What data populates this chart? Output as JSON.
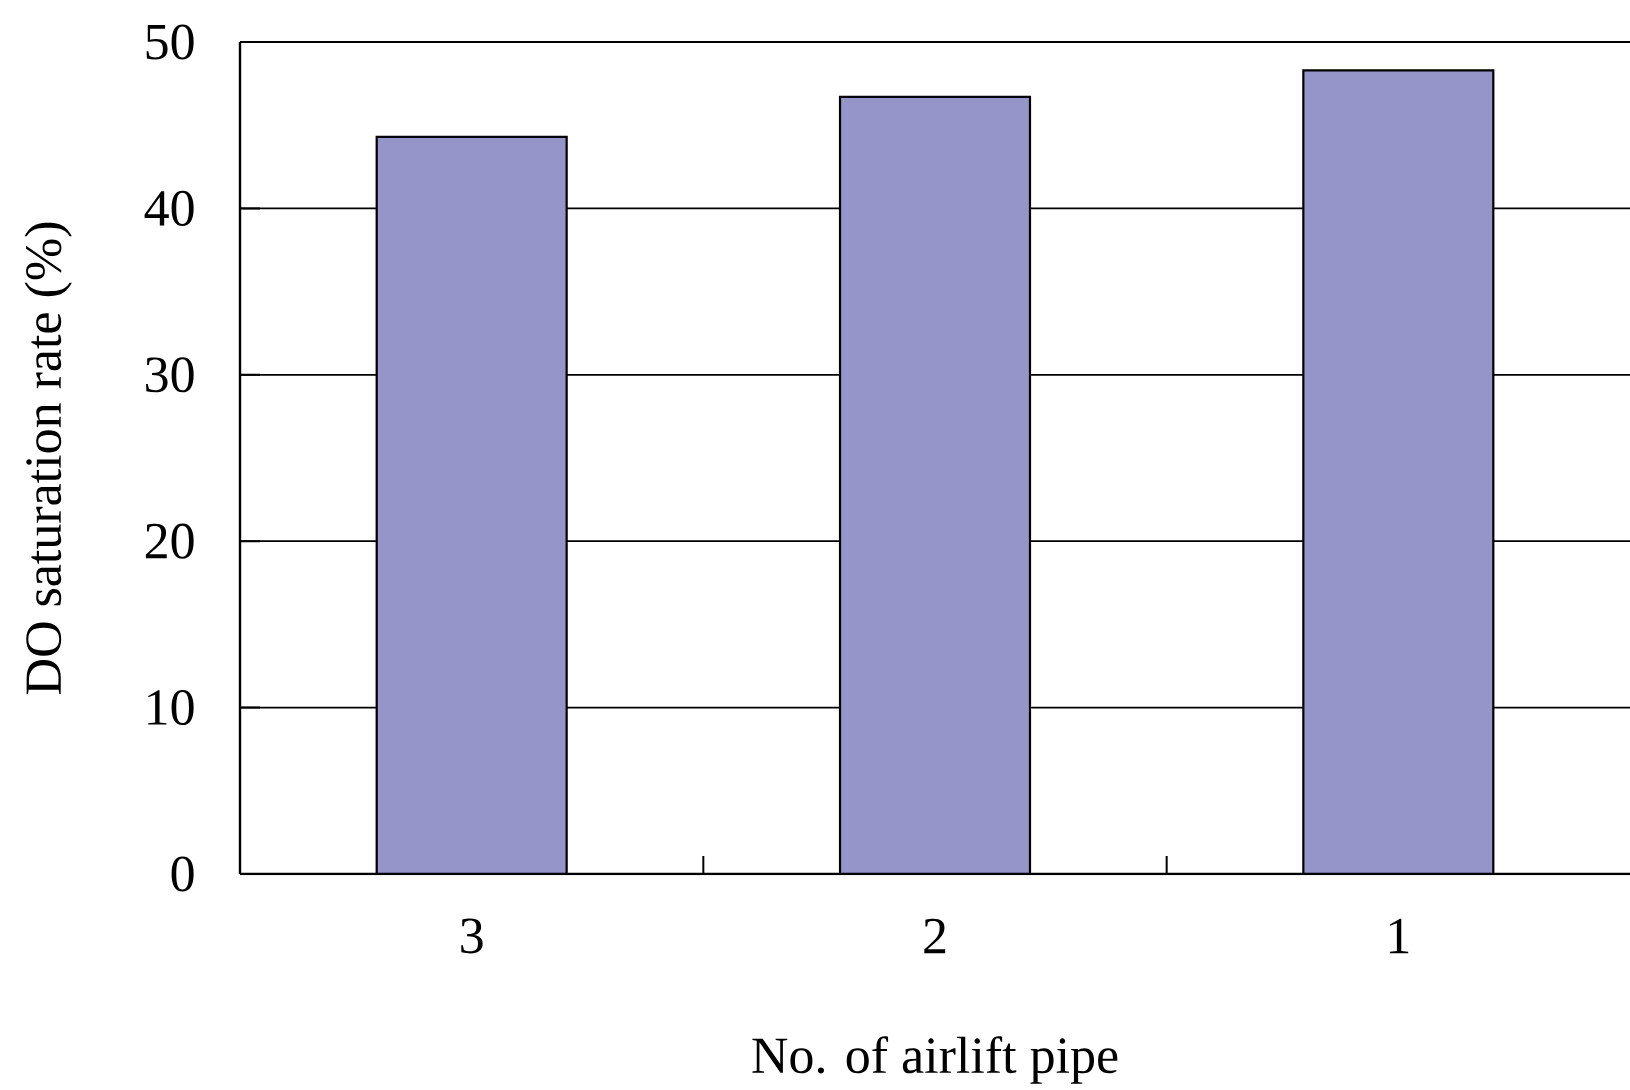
{
  "chart_data": {
    "type": "bar",
    "xlabel": "No. of airlift pipe",
    "ylabel": "DO saturation rate (%)",
    "categories": [
      "3",
      "2",
      "1"
    ],
    "values": [
      44.3,
      46.7,
      48.3
    ],
    "color": "#9595c9",
    "ylim": [
      0,
      50
    ],
    "yticks": [
      0,
      10,
      20,
      30,
      40,
      50
    ],
    "grid": "y"
  }
}
